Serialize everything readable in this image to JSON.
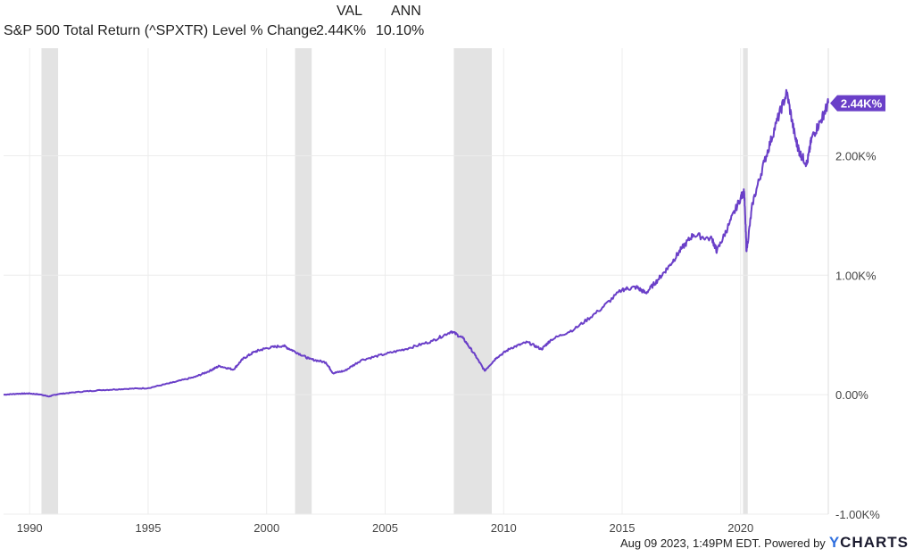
{
  "legend": {
    "col_val": "VAL",
    "col_ann": "ANN",
    "series_name": "S&P 500 Total Return (^SPXTR) Level % Change",
    "val": "2.44K%",
    "ann": "10.10%"
  },
  "footer": {
    "timestamp": "Aug 09 2023, 1:49PM EDT. Powered by",
    "brand_y": "Y",
    "brand_rest": "CHARTS"
  },
  "colors": {
    "line": "#6a3fc8",
    "recession": "#e3e3e3",
    "grid": "#ececec",
    "badge": "#6a3fc8"
  },
  "chart_data": {
    "type": "line",
    "title": "",
    "xlabel": "",
    "ylabel": "",
    "x_ticks": [
      "1990",
      "1995",
      "2000",
      "2005",
      "2010",
      "2015",
      "2020"
    ],
    "x_tick_values": [
      1990,
      1995,
      2000,
      2005,
      2010,
      2015,
      2020
    ],
    "y_ticks": [
      "-1.00K%",
      "0.00%",
      "1.00K%",
      "2.00K%"
    ],
    "y_tick_values": [
      -1000,
      0,
      1000,
      2000
    ],
    "xlim": [
      1988.9,
      2023.7
    ],
    "ylim": [
      -1000,
      2900
    ],
    "last_value_label": "2.44K%",
    "last_value": 2440,
    "recessions": [
      [
        1990.5,
        1991.2
      ],
      [
        2001.2,
        2001.9
      ],
      [
        2007.9,
        2009.5
      ],
      [
        2020.1,
        2020.3
      ]
    ],
    "series": [
      {
        "name": "S&P 500 Total Return (^SPXTR) Level % Change",
        "points": [
          [
            1988.9,
            0
          ],
          [
            1989.5,
            8
          ],
          [
            1990.0,
            10
          ],
          [
            1990.5,
            0
          ],
          [
            1990.8,
            -15
          ],
          [
            1991.2,
            5
          ],
          [
            1992.0,
            22
          ],
          [
            1993.0,
            38
          ],
          [
            1994.0,
            48
          ],
          [
            1995.0,
            55
          ],
          [
            1996.0,
            100
          ],
          [
            1997.0,
            150
          ],
          [
            1997.6,
            200
          ],
          [
            1998.0,
            240
          ],
          [
            1998.6,
            210
          ],
          [
            1999.0,
            300
          ],
          [
            1999.5,
            360
          ],
          [
            2000.0,
            390
          ],
          [
            2000.7,
            410
          ],
          [
            2001.2,
            360
          ],
          [
            2001.8,
            300
          ],
          [
            2002.5,
            270
          ],
          [
            2002.8,
            180
          ],
          [
            2003.3,
            200
          ],
          [
            2004.0,
            290
          ],
          [
            2005.0,
            340
          ],
          [
            2006.0,
            390
          ],
          [
            2007.0,
            450
          ],
          [
            2007.8,
            530
          ],
          [
            2008.3,
            470
          ],
          [
            2008.8,
            330
          ],
          [
            2009.2,
            200
          ],
          [
            2009.7,
            310
          ],
          [
            2010.3,
            390
          ],
          [
            2011.0,
            440
          ],
          [
            2011.6,
            380
          ],
          [
            2012.0,
            460
          ],
          [
            2013.0,
            550
          ],
          [
            2014.0,
            700
          ],
          [
            2015.0,
            880
          ],
          [
            2015.6,
            900
          ],
          [
            2016.0,
            850
          ],
          [
            2016.5,
            960
          ],
          [
            2017.0,
            1080
          ],
          [
            2017.5,
            1220
          ],
          [
            2018.0,
            1340
          ],
          [
            2018.8,
            1300
          ],
          [
            2019.0,
            1200
          ],
          [
            2019.5,
            1420
          ],
          [
            2020.0,
            1650
          ],
          [
            2020.15,
            1700
          ],
          [
            2020.25,
            1200
          ],
          [
            2020.5,
            1600
          ],
          [
            2021.0,
            1950
          ],
          [
            2021.5,
            2270
          ],
          [
            2021.95,
            2530
          ],
          [
            2022.3,
            2150
          ],
          [
            2022.5,
            2020
          ],
          [
            2022.8,
            1930
          ],
          [
            2023.0,
            2150
          ],
          [
            2023.4,
            2300
          ],
          [
            2023.7,
            2440
          ]
        ]
      }
    ],
    "grid": true,
    "legend_position": "top-left"
  }
}
